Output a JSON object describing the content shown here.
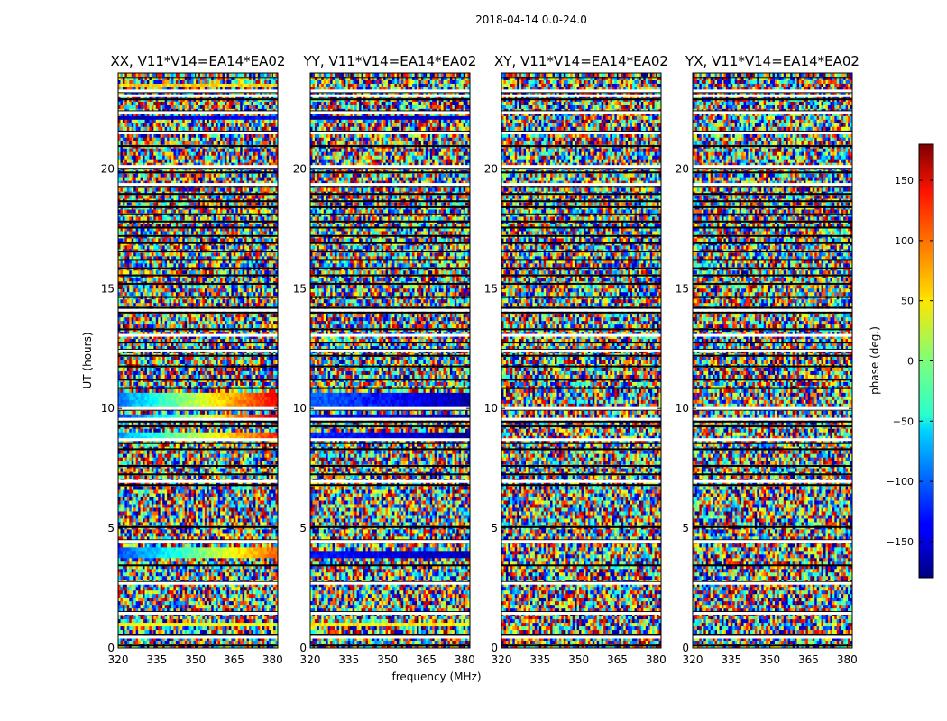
{
  "figure": {
    "suptitle": "2018-04-14 0.0-24.0"
  },
  "chart_data": {
    "type": "heatmap",
    "title": "2018-04-14 0.0-24.0",
    "xlabel": "frequency (MHz)",
    "ylabel": "UT (hours)",
    "xlim": [
      320,
      382
    ],
    "ylim": [
      0,
      24
    ],
    "x_ticks": [
      320,
      335,
      350,
      365,
      380
    ],
    "y_ticks": [
      0,
      5,
      10,
      15,
      20
    ],
    "colormap": "jet",
    "colorbar": {
      "label": "phase (deg.)",
      "range": [
        -180,
        180
      ],
      "ticks": [
        -150,
        -100,
        -50,
        0,
        50,
        100,
        150
      ]
    },
    "panels": [
      {
        "title": "XX, V11*V14=EA14*EA02",
        "coherent_bands": [
          {
            "ut_start": 0.95,
            "ut_end": 1.1,
            "phase_at_320": 40,
            "phase_at_382": 40
          },
          {
            "ut_start": 3.8,
            "ut_end": 4.2,
            "phase_at_320": -110,
            "phase_at_382": 100
          },
          {
            "ut_start": 8.75,
            "ut_end": 9.0,
            "phase_at_320": -80,
            "phase_at_382": 120
          },
          {
            "ut_start": 9.6,
            "ut_end": 9.8,
            "phase_at_320": -120,
            "phase_at_382": 160
          },
          {
            "ut_start": 10.1,
            "ut_end": 10.6,
            "phase_at_320": -90,
            "phase_at_382": 140
          },
          {
            "ut_start": 22.05,
            "ut_end": 22.2,
            "phase_at_320": -160,
            "phase_at_382": -130
          },
          {
            "ut_start": 23.35,
            "ut_end": 23.55,
            "phase_at_320": 60,
            "phase_at_382": 60
          }
        ]
      },
      {
        "title": "YY, V11*V14=EA14*EA02",
        "coherent_bands": [
          {
            "ut_start": 0.95,
            "ut_end": 1.1,
            "phase_at_320": 50,
            "phase_at_382": 50
          },
          {
            "ut_start": 3.7,
            "ut_end": 4.1,
            "phase_at_320": -130,
            "phase_at_382": -160
          },
          {
            "ut_start": 8.75,
            "ut_end": 9.0,
            "phase_at_320": -120,
            "phase_at_382": -170
          },
          {
            "ut_start": 9.6,
            "ut_end": 9.8,
            "phase_at_320": -140,
            "phase_at_382": -170
          },
          {
            "ut_start": 10.1,
            "ut_end": 10.6,
            "phase_at_320": -100,
            "phase_at_382": -165
          },
          {
            "ut_start": 22.0,
            "ut_end": 22.2,
            "phase_at_320": -165,
            "phase_at_382": -150
          }
        ]
      },
      {
        "title": "XY, V11*V14=EA14*EA02",
        "coherent_bands": []
      },
      {
        "title": "YX, V11*V14=EA14*EA02",
        "coherent_bands": []
      }
    ],
    "flagged_ut_rows": [
      0.1,
      0.55,
      1.5,
      2.75,
      3.45,
      4.5,
      5.05,
      6.8,
      7.25,
      7.6,
      8.3,
      8.55,
      9.25,
      9.45,
      9.95,
      10.85,
      11.2,
      11.75,
      12.2,
      12.45,
      12.75,
      13.3,
      14.0,
      14.2,
      14.65,
      15.2,
      15.55,
      15.85,
      16.2,
      16.55,
      16.9,
      17.2,
      17.55,
      17.8,
      18.1,
      18.4,
      18.65,
      18.95,
      19.25,
      19.85,
      20.05,
      20.95,
      21.55,
      22.4,
      22.9,
      23.2,
      23.8
    ],
    "blank_ut_rows": [
      0.45,
      1.45,
      2.7,
      4.45,
      6.95,
      8.7,
      9.55,
      10.0,
      12.4,
      13.05,
      14.1,
      19.35,
      20.1,
      21.5,
      22.35,
      23.05,
      23.25
    ]
  }
}
